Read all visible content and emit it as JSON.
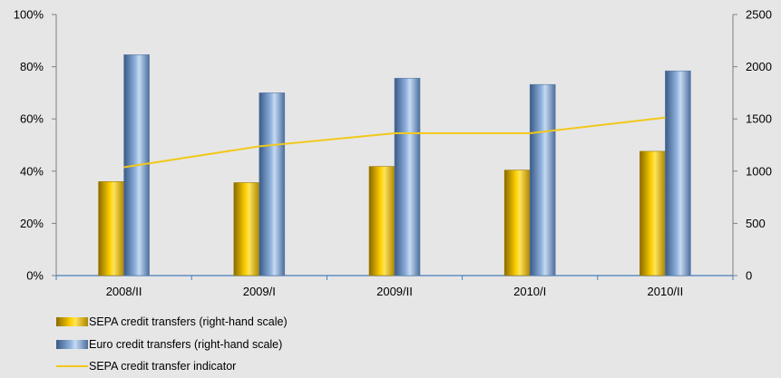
{
  "chart_data": {
    "type": "bar",
    "categories": [
      "2008/II",
      "2009/I",
      "2009/II",
      "2010/I",
      "2010/II"
    ],
    "series": [
      {
        "name": "SEPA credit transfers (right-hand scale)",
        "type": "bar",
        "axis": "right",
        "color": "#ffcc00",
        "values": [
          900,
          890,
          1045,
          1010,
          1190
        ]
      },
      {
        "name": "Euro credit transfers (right-hand scale)",
        "type": "bar",
        "axis": "right",
        "color": "#8fb2dd",
        "values": [
          2115,
          1750,
          1890,
          1830,
          1960
        ]
      },
      {
        "name": "SEPA credit transfer indicator",
        "type": "line",
        "axis": "left",
        "color": "#f2c81a",
        "values": [
          41.5,
          49.5,
          54.5,
          54.5,
          60.5
        ]
      }
    ],
    "y_left": {
      "min": 0,
      "max": 100,
      "step": 20,
      "format": "percent",
      "tick_labels": [
        "0%",
        "20%",
        "40%",
        "60%",
        "80%",
        "100%"
      ]
    },
    "y_right": {
      "min": 0,
      "max": 2500,
      "step": 500,
      "tick_labels": [
        "0",
        "500",
        "1000",
        "1500",
        "2000",
        "2500"
      ]
    },
    "grid": false,
    "legend": "bottom-left"
  }
}
